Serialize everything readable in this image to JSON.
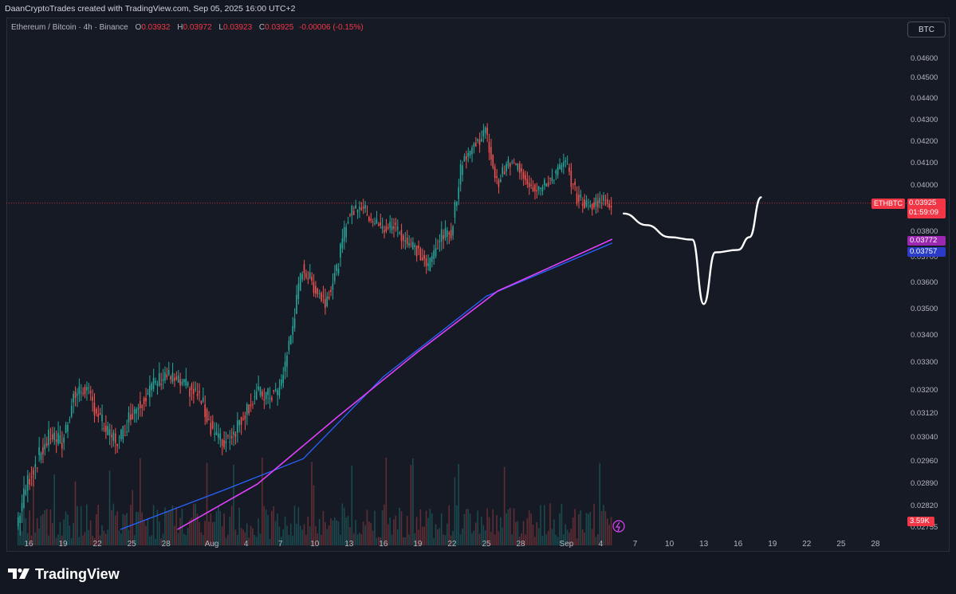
{
  "header": {
    "attribution": "DaanCryptoTrades created with TradingView.com, Sep 05, 2025 16:00 UTC+2"
  },
  "legend": {
    "symbol": "Ethereum / Bitcoin · 4h · Binance",
    "o_label": "O",
    "o_value": "0.03932",
    "h_label": "H",
    "h_value": "0.03972",
    "l_label": "L",
    "l_value": "0.03923",
    "c_label": "C",
    "c_value": "0.03925",
    "change": "-0.00006 (-0.15%)"
  },
  "currency_button": "BTC",
  "price_tag": {
    "symbol": "ETHBTC",
    "price": "0.03925",
    "countdown": "01:59:09"
  },
  "ma_tags": {
    "ma1": "0.03772",
    "ma2": "0.03757"
  },
  "volume_tag": "3.59K",
  "brand": {
    "name": "TradingView"
  },
  "colors": {
    "up": "#26a69a",
    "down": "#ef5350",
    "ma1": "#e040fb",
    "ma2": "#2962ff",
    "projection": "#ffffff",
    "background": "#161a25"
  },
  "chart_data": {
    "type": "candlestick",
    "symbol": "ETHBTC",
    "timeframe": "4h",
    "exchange": "Binance",
    "y_ticks": [
      "0.04600",
      "0.04500",
      "0.04400",
      "0.04300",
      "0.04200",
      "0.04100",
      "0.04000",
      "0.03800",
      "0.03700",
      "0.03600",
      "0.03500",
      "0.03400",
      "0.03300",
      "0.03200",
      "0.03120",
      "0.03040",
      "0.02960",
      "0.02890",
      "0.02820",
      "0.02755"
    ],
    "x_ticks": [
      "16",
      "19",
      "22",
      "25",
      "28",
      "Aug",
      "4",
      "7",
      "10",
      "13",
      "16",
      "19",
      "22",
      "25",
      "28",
      "Sep",
      "4",
      "7",
      "10",
      "13",
      "16",
      "19",
      "22",
      "25",
      "28"
    ],
    "ylim": [
      0.0275,
      0.0468
    ],
    "price_path": [
      {
        "date": "Jul 15",
        "price": 0.0276
      },
      {
        "date": "Jul 16",
        "price": 0.029
      },
      {
        "date": "Jul 17",
        "price": 0.0298
      },
      {
        "date": "Jul 18",
        "price": 0.0305
      },
      {
        "date": "Jul 19",
        "price": 0.0302
      },
      {
        "date": "Jul 20",
        "price": 0.0318
      },
      {
        "date": "Jul 21",
        "price": 0.0321
      },
      {
        "date": "Jul 22",
        "price": 0.0313
      },
      {
        "date": "Jul 23",
        "price": 0.0305
      },
      {
        "date": "Jul 24",
        "price": 0.0303
      },
      {
        "date": "Jul 25",
        "price": 0.0312
      },
      {
        "date": "Jul 26",
        "price": 0.0317
      },
      {
        "date": "Jul 27",
        "price": 0.0322
      },
      {
        "date": "Jul 28",
        "price": 0.0326
      },
      {
        "date": "Jul 29",
        "price": 0.0323
      },
      {
        "date": "Jul 30",
        "price": 0.0321
      },
      {
        "date": "Jul 31",
        "price": 0.0318
      },
      {
        "date": "Aug 1",
        "price": 0.0308
      },
      {
        "date": "Aug 2",
        "price": 0.0302
      },
      {
        "date": "Aug 3",
        "price": 0.0306
      },
      {
        "date": "Aug 4",
        "price": 0.0313
      },
      {
        "date": "Aug 5",
        "price": 0.0319
      },
      {
        "date": "Aug 6",
        "price": 0.0318
      },
      {
        "date": "Aug 7",
        "price": 0.032
      },
      {
        "date": "Aug 8",
        "price": 0.034
      },
      {
        "date": "Aug 9",
        "price": 0.0366
      },
      {
        "date": "Aug 10",
        "price": 0.0359
      },
      {
        "date": "Aug 11",
        "price": 0.0353
      },
      {
        "date": "Aug 12",
        "price": 0.0365
      },
      {
        "date": "Aug 13",
        "price": 0.0387
      },
      {
        "date": "Aug 14",
        "price": 0.0392
      },
      {
        "date": "Aug 15",
        "price": 0.0386
      },
      {
        "date": "Aug 16",
        "price": 0.0381
      },
      {
        "date": "Aug 17",
        "price": 0.0383
      },
      {
        "date": "Aug 18",
        "price": 0.0377
      },
      {
        "date": "Aug 19",
        "price": 0.0373
      },
      {
        "date": "Aug 20",
        "price": 0.0366
      },
      {
        "date": "Aug 21",
        "price": 0.0378
      },
      {
        "date": "Aug 22",
        "price": 0.038
      },
      {
        "date": "Aug 23",
        "price": 0.0412
      },
      {
        "date": "Aug 24",
        "price": 0.0418
      },
      {
        "date": "Aug 25",
        "price": 0.0425
      },
      {
        "date": "Aug 26",
        "price": 0.0401
      },
      {
        "date": "Aug 27",
        "price": 0.041
      },
      {
        "date": "Aug 28",
        "price": 0.0408
      },
      {
        "date": "Aug 29",
        "price": 0.04
      },
      {
        "date": "Aug 30",
        "price": 0.0399
      },
      {
        "date": "Aug 31",
        "price": 0.0405
      },
      {
        "date": "Sep 1",
        "price": 0.041
      },
      {
        "date": "Sep 2",
        "price": 0.0395
      },
      {
        "date": "Sep 3",
        "price": 0.0391
      },
      {
        "date": "Sep 4",
        "price": 0.0394
      },
      {
        "date": "Sep 5",
        "price": 0.03925
      }
    ],
    "ma1": [
      {
        "date": "Jul 29",
        "price": 0.0275
      },
      {
        "date": "Aug 5",
        "price": 0.0289
      },
      {
        "date": "Aug 12",
        "price": 0.0311
      },
      {
        "date": "Aug 19",
        "price": 0.0334
      },
      {
        "date": "Aug 26",
        "price": 0.0357
      },
      {
        "date": "Sep 5",
        "price": 0.03772
      }
    ],
    "ma2": [
      {
        "date": "Jul 24",
        "price": 0.0275
      },
      {
        "date": "Aug 2",
        "price": 0.0287
      },
      {
        "date": "Aug 9",
        "price": 0.0297
      },
      {
        "date": "Aug 16",
        "price": 0.0325
      },
      {
        "date": "Aug 25",
        "price": 0.0355
      },
      {
        "date": "Sep 5",
        "price": 0.03757
      }
    ],
    "projection": [
      {
        "date": "Sep 6",
        "price": 0.0388
      },
      {
        "date": "Sep 8",
        "price": 0.0383
      },
      {
        "date": "Sep 10",
        "price": 0.0378
      },
      {
        "date": "Sep 12",
        "price": 0.0377
      },
      {
        "date": "Sep 13",
        "price": 0.0352
      },
      {
        "date": "Sep 14",
        "price": 0.0372
      },
      {
        "date": "Sep 16",
        "price": 0.0373
      },
      {
        "date": "Sep 17",
        "price": 0.0378
      },
      {
        "date": "Sep 18",
        "price": 0.0395
      }
    ]
  }
}
